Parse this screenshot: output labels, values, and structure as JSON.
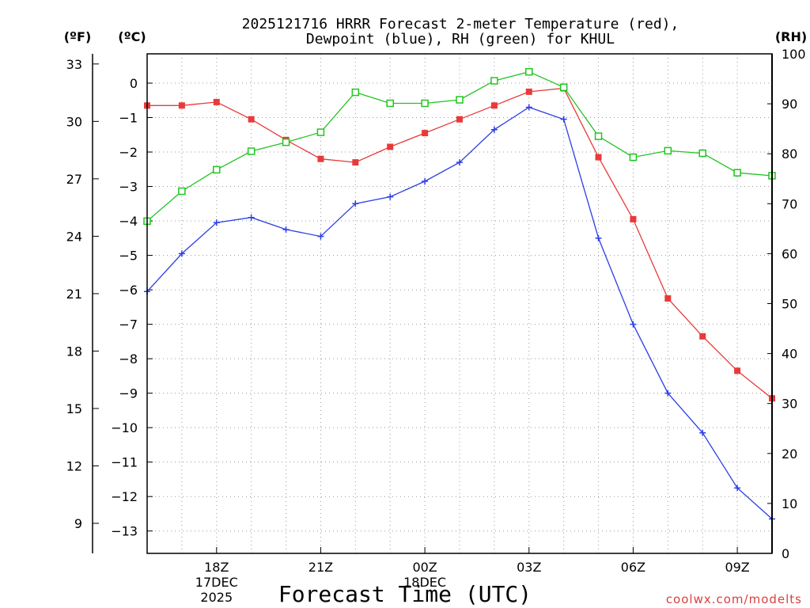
{
  "chart_data": {
    "type": "line",
    "title_line1": "2025121716 HRRR Forecast 2-meter Temperature (red),",
    "title_line2": "Dewpoint (blue), RH (green) for KHUL",
    "xlabel": "Forecast Time (UTC)",
    "unit_f": "(ºF)",
    "unit_c": "(ºC)",
    "unit_rh": "(RH)",
    "watermark": "coolwx.com/modelts",
    "x_hours": [
      0,
      1,
      2,
      3,
      4,
      5,
      6,
      7,
      8,
      9,
      10,
      11,
      12,
      13,
      14,
      15,
      16,
      17,
      18
    ],
    "x_ticks": [
      {
        "hour": 2,
        "label": "18Z",
        "date": "17DEC",
        "year": "2025"
      },
      {
        "hour": 5,
        "label": "21Z"
      },
      {
        "hour": 8,
        "label": "00Z",
        "date": "18DEC"
      },
      {
        "hour": 11,
        "label": "03Z"
      },
      {
        "hour": 14,
        "label": "06Z"
      },
      {
        "hour": 17,
        "label": "09Z"
      }
    ],
    "celsius_axis": {
      "min": -13.65,
      "max": 0.85,
      "ticks": [
        0,
        -1,
        -2,
        -3,
        -4,
        -5,
        -6,
        -7,
        -8,
        -9,
        -10,
        -11,
        -12,
        -13
      ]
    },
    "fahrenheit_axis": {
      "min": 7.43,
      "max": 33.53,
      "ticks": [
        33,
        30,
        27,
        24,
        21,
        18,
        15,
        12,
        9
      ]
    },
    "rh_axis": {
      "min": 0,
      "max": 100,
      "ticks": [
        100,
        90,
        80,
        70,
        60,
        50,
        40,
        30,
        20,
        10,
        0
      ]
    },
    "series": [
      {
        "name": "Temperature",
        "color": "#e83a3a",
        "marker": "filled-square",
        "axis": "c",
        "values": [
          -0.65,
          -0.65,
          -0.55,
          -1.05,
          -1.65,
          -2.2,
          -2.3,
          -1.85,
          -1.45,
          -1.05,
          -0.65,
          -0.25,
          -0.15,
          -2.15,
          -3.95,
          -6.25,
          -7.35,
          -8.35,
          -9.15
        ]
      },
      {
        "name": "Dewpoint",
        "color": "#2c3ee6",
        "marker": "plus",
        "axis": "c",
        "values": [
          -6.05,
          -4.95,
          -4.05,
          -3.9,
          -4.25,
          -4.45,
          -3.5,
          -3.3,
          -2.85,
          -2.3,
          -1.35,
          -0.7,
          -1.05,
          -4.5,
          -7.0,
          -9.0,
          -10.15,
          -11.75,
          -12.65
        ]
      },
      {
        "name": "RH",
        "color": "#22c422",
        "marker": "open-square",
        "axis": "rh",
        "values": [
          66.5,
          72.5,
          76.8,
          80.5,
          82.3,
          84.3,
          92.3,
          90.1,
          90.1,
          90.8,
          94.6,
          96.4,
          93.3,
          83.5,
          79.3,
          80.6,
          80.1,
          76.2,
          75.6
        ]
      }
    ]
  }
}
